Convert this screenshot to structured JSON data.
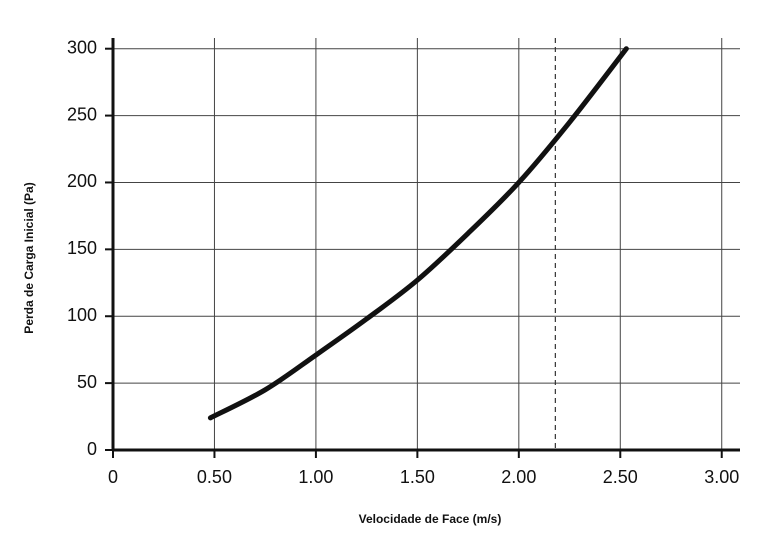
{
  "chart_data": {
    "type": "line",
    "x_label": "Velocidade de Face (m/s)",
    "y_label": "Perda de Carga Inicial (Pa)",
    "x": [
      0.48,
      0.75,
      1.0,
      1.25,
      1.5,
      1.75,
      2.0,
      2.25,
      2.53
    ],
    "values": [
      24,
      45,
      71,
      98,
      127,
      162,
      200,
      245,
      300
    ],
    "color": "#111111",
    "xlim": [
      0,
      3.09
    ],
    "ylim": [
      0,
      308
    ],
    "xticks": [
      0,
      {
        "value": 0.5,
        "label": "0.50"
      },
      {
        "value": 1,
        "label": "1.00"
      },
      {
        "value": 1.5,
        "label": "1.50"
      },
      {
        "value": 2,
        "label": "2.00"
      },
      {
        "value": 2.5,
        "label": "2.50"
      },
      {
        "value": 3,
        "label": "3.00"
      }
    ],
    "yticks": [
      0,
      50,
      100,
      150,
      200,
      250,
      300
    ],
    "grid": true,
    "reference_line_x": 2.18
  }
}
